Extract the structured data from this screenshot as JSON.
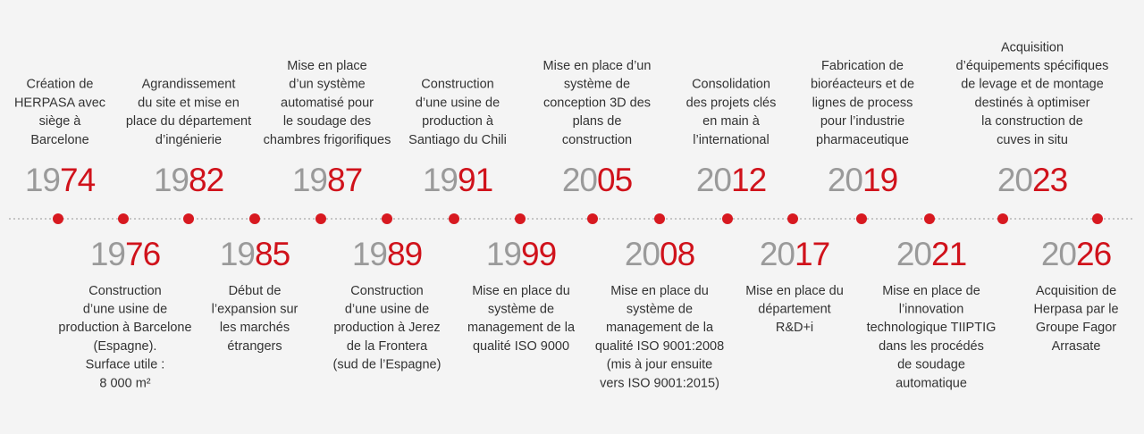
{
  "events": [
    {
      "year": {
        "prefix": "19",
        "suffix": "74"
      },
      "lines": [
        "Création de",
        "HERPASA avec",
        "siège à",
        "Barcelone"
      ]
    },
    {
      "year": {
        "prefix": "19",
        "suffix": "76"
      },
      "lines": [
        "Construction",
        "d’une usine de",
        "production à Barcelone",
        "(Espagne).",
        "Surface utile :",
        "8 000 m²"
      ]
    },
    {
      "year": {
        "prefix": "19",
        "suffix": "82"
      },
      "lines": [
        "Agrandissement",
        "du site et mise en",
        "place du département",
        "d’ingénierie"
      ]
    },
    {
      "year": {
        "prefix": "19",
        "suffix": "85"
      },
      "lines": [
        "Début de",
        "l’expansion sur",
        "les marchés",
        "étrangers"
      ]
    },
    {
      "year": {
        "prefix": "19",
        "suffix": "87"
      },
      "lines": [
        "Mise en place",
        "d’un système",
        "automatisé pour",
        "le soudage des",
        "chambres frigorifiques"
      ]
    },
    {
      "year": {
        "prefix": "19",
        "suffix": "89"
      },
      "lines": [
        "Construction",
        "d’une usine de",
        "production à Jerez",
        "de la Frontera",
        "(sud de l’Espagne)"
      ]
    },
    {
      "year": {
        "prefix": "19",
        "suffix": "91"
      },
      "lines": [
        "Construction",
        "d’une usine de",
        "production à",
        "Santiago du Chili"
      ]
    },
    {
      "year": {
        "prefix": "19",
        "suffix": "99"
      },
      "lines": [
        "Mise en place du",
        "système de",
        "management de la",
        "qualité ISO 9000"
      ]
    },
    {
      "year": {
        "prefix": "20",
        "suffix": "05"
      },
      "lines": [
        "Mise en place d’un",
        "système de",
        "conception 3D des",
        "plans de",
        "construction"
      ]
    },
    {
      "year": {
        "prefix": "20",
        "suffix": "08"
      },
      "lines": [
        "Mise en place du",
        "système de",
        "management de la",
        "qualité ISO 9001:2008",
        "(mis à jour ensuite",
        "vers ISO 9001:2015)"
      ]
    },
    {
      "year": {
        "prefix": "20",
        "suffix": "12"
      },
      "lines": [
        "Consolidation",
        "des projets clés",
        "en main à",
        "l’international"
      ]
    },
    {
      "year": {
        "prefix": "20",
        "suffix": "17"
      },
      "lines": [
        "Mise en place du",
        "département",
        "R&D+i"
      ]
    },
    {
      "year": {
        "prefix": "20",
        "suffix": "19"
      },
      "lines": [
        "Fabrication de",
        "bioréacteurs et de",
        "lignes de process",
        "pour l’industrie",
        "pharmaceutique"
      ]
    },
    {
      "year": {
        "prefix": "20",
        "suffix": "21"
      },
      "lines": [
        "Mise en place de",
        "l’innovation",
        "technologique TIIPTIG",
        "dans les procédés",
        "de soudage",
        "automatique"
      ]
    },
    {
      "year": {
        "prefix": "20",
        "suffix": "23"
      },
      "lines": [
        "Acquisition",
        "d’équipements spécifiques",
        "de levage et de montage",
        "destinés à optimiser",
        "la construction de",
        "cuves in situ"
      ]
    },
    {
      "year": {
        "prefix": "20",
        "suffix": "26"
      },
      "lines": [
        "Acquisition de",
        "Herpasa par le",
        "Groupe Fagor",
        "Arrasate"
      ]
    }
  ]
}
